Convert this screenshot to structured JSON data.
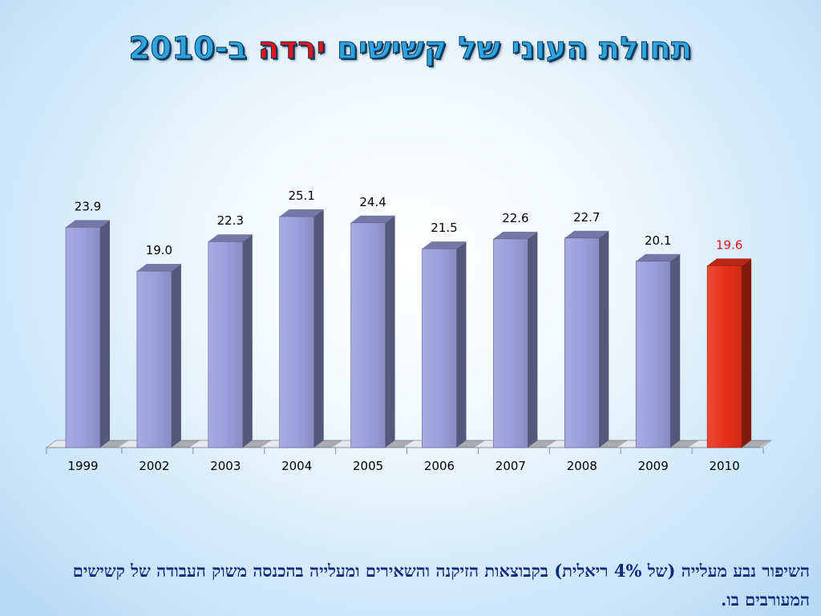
{
  "title": {
    "main": "תחולת העוני של קשישים",
    "accent": "ירדה",
    "suffix": "ב-2010"
  },
  "footnote": "השיפור נבע מעלייה (של 4% ריאלית) בקבוצאות הזיקנה והשאירים ומעלייה בהכנסה משוק העבודה של קשישים המעורבים בו.",
  "colors": {
    "bar": "#9aa0dd",
    "bar_highlight": "#e8301a",
    "label": "#000000",
    "label_highlight": "#e8141c",
    "title_main": "#2ea3de",
    "title_accent": "#e8141c"
  },
  "chart_data": {
    "type": "bar",
    "categories": [
      "1999",
      "2002",
      "2003",
      "2004",
      "2005",
      "2006",
      "2007",
      "2008",
      "2009",
      "2010"
    ],
    "values": [
      23.9,
      19.0,
      22.3,
      25.1,
      24.4,
      21.5,
      22.6,
      22.7,
      20.1,
      19.6
    ],
    "value_labels": [
      "23.9",
      "19.0",
      "22.3",
      "25.1",
      "24.4",
      "21.5",
      "22.6",
      "22.7",
      "20.1",
      "19.6"
    ],
    "highlight_category": "2010",
    "title": "",
    "xlabel": "",
    "ylabel": "",
    "ylim": [
      0,
      25.1
    ],
    "grid": false,
    "legend": "none",
    "style": "3d-column"
  }
}
